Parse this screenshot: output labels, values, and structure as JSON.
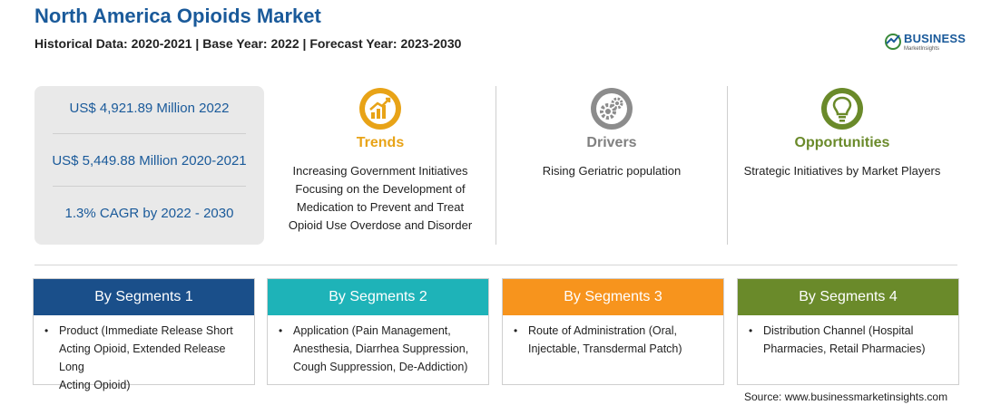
{
  "header": {
    "title": "North America Opioids Market",
    "subtitle": "Historical Data: 2020-2021 | Base Year: 2022 | Forecast Year: 2023-2030"
  },
  "logo": {
    "name": "BUSINESS",
    "tagline": "MarketInsights"
  },
  "stats": [
    "US$ 4,921.89 Million 2022",
    "US$ 5,449.88 Million 2020-2021",
    "1.3% CAGR by 2022 - 2030"
  ],
  "columns": {
    "trends": {
      "heading": "Trends",
      "text": [
        "Increasing Government Initiatives",
        "Focusing on the Development of",
        "Medication to Prevent and Treat",
        "Opioid Use Overdose and Disorder"
      ],
      "icon": "growth-chart-icon",
      "color": "#e8a317"
    },
    "drivers": {
      "heading": "Drivers",
      "text": [
        "Rising Geriatric population"
      ],
      "icon": "gears-icon",
      "color": "#808080"
    },
    "opportunities": {
      "heading": "Opportunities",
      "text": [
        "Strategic Initiatives by Market Players"
      ],
      "icon": "lightbulb-icon",
      "color": "#6a8a2a"
    }
  },
  "segments": [
    {
      "title": "By Segments 1",
      "color": "#1a4f8a",
      "text": [
        "Product (Immediate Release Short",
        "Acting Opioid, Extended Release Long",
        "Acting Opioid)"
      ]
    },
    {
      "title": "By Segments 2",
      "color": "#1eb3b8",
      "text": [
        "Application (Pain Management,",
        "Anesthesia, Diarrhea Suppression,",
        "Cough Suppression, De-Addiction)"
      ]
    },
    {
      "title": "By Segments 3",
      "color": "#f7941d",
      "text": [
        "Route of Administration (Oral,",
        "Injectable, Transdermal Patch)"
      ]
    },
    {
      "title": "By Segments 4",
      "color": "#6a8a2a",
      "text": [
        "Distribution Channel (Hospital",
        "Pharmacies, Retail Pharmacies)"
      ]
    }
  ],
  "source": "Source: www.businessmarketinsights.com"
}
